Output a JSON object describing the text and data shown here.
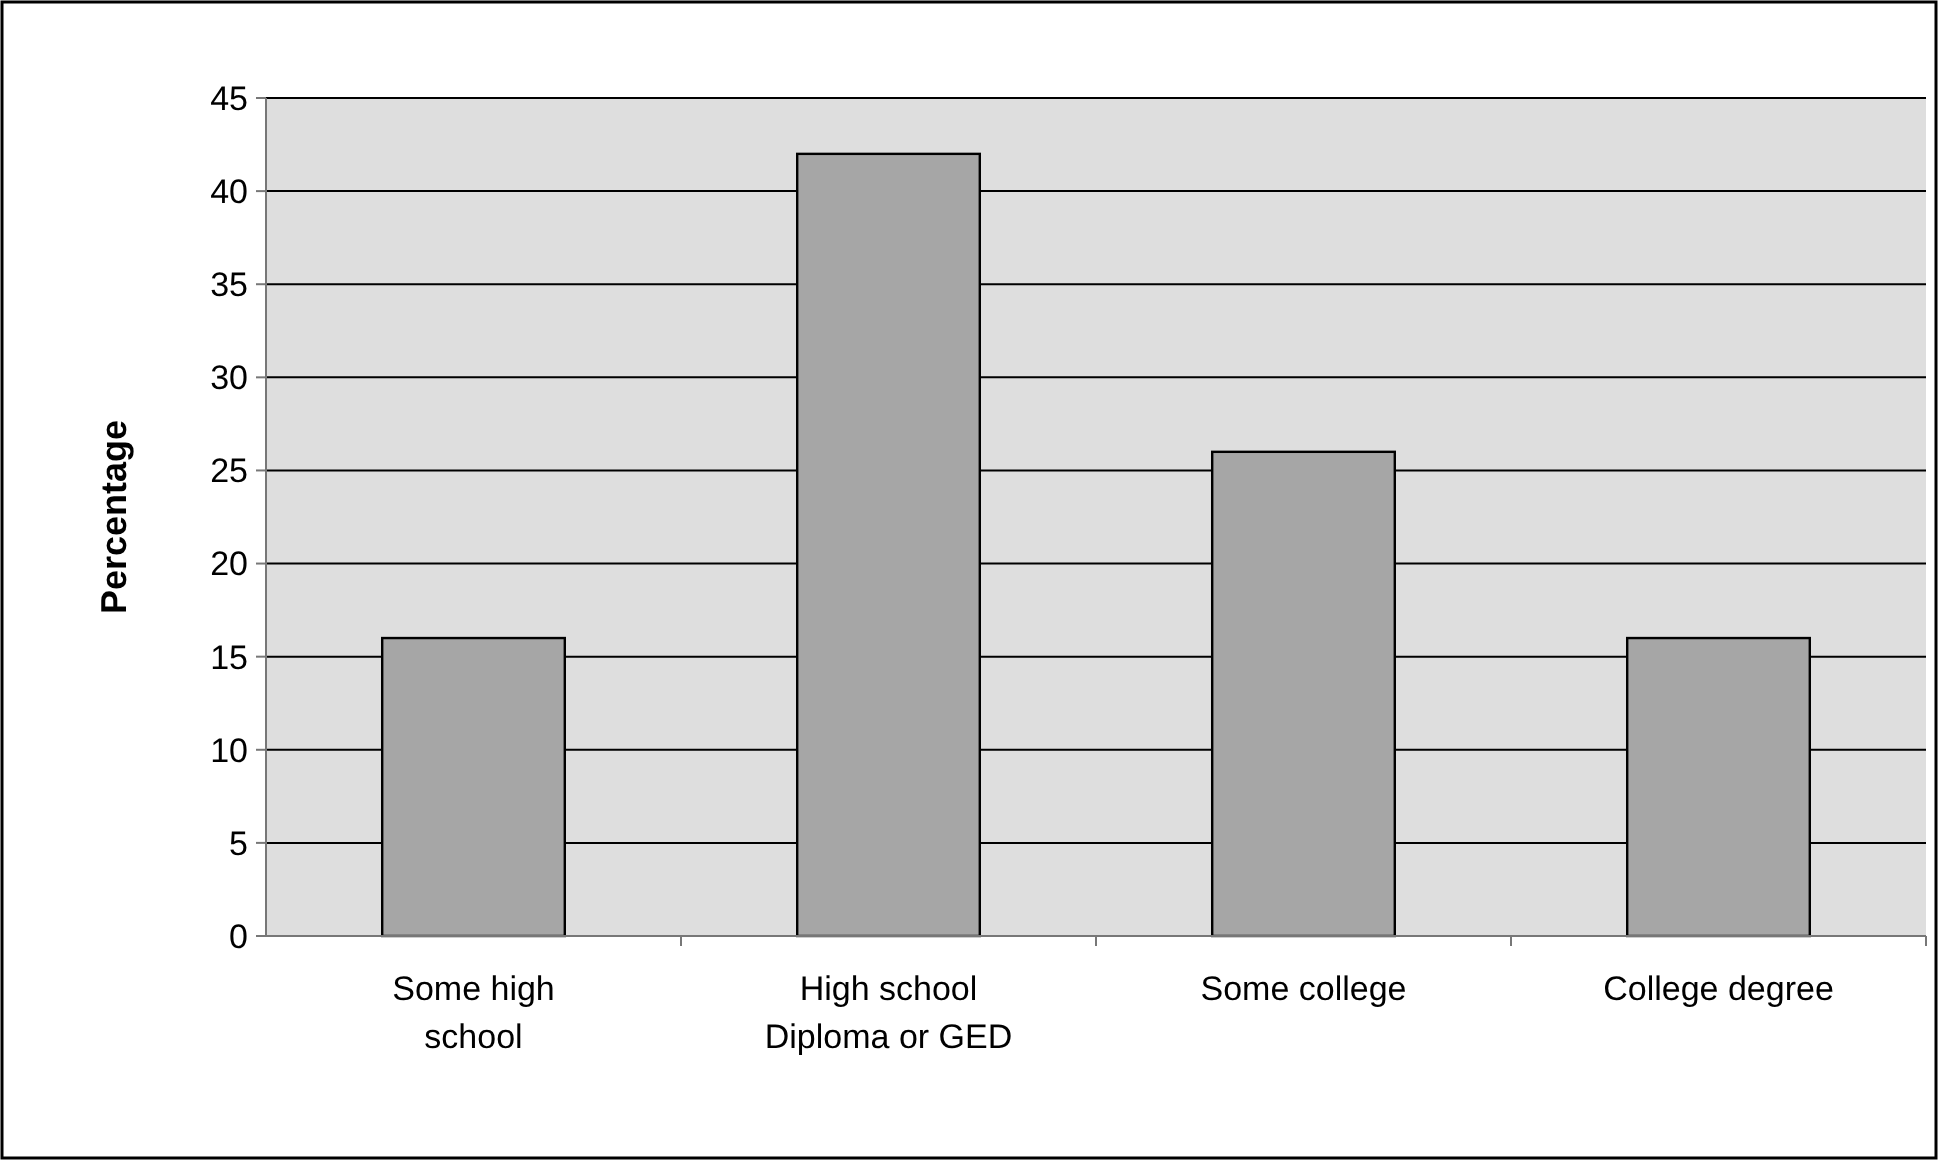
{
  "chart_data": {
    "type": "bar",
    "ylabel": "Percentage",
    "categories": [
      "Some high school",
      "High school Diploma or GED",
      "Some college",
      "College degree"
    ],
    "values": [
      16,
      42,
      26,
      16
    ],
    "color": "#a6a6a6",
    "ylim": [
      0,
      45
    ],
    "yticks": [
      0,
      5,
      10,
      15,
      20,
      25,
      30,
      35,
      40,
      45
    ],
    "grid": "y"
  }
}
